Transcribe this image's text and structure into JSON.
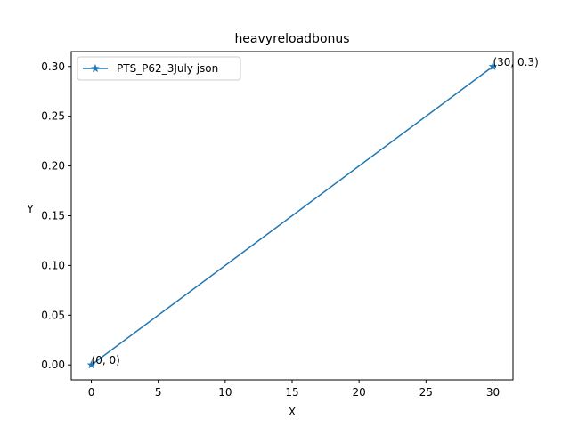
{
  "chart_data": {
    "type": "line",
    "title": "heavyreloadbonus",
    "xlabel": "X",
    "ylabel": "Y",
    "xlim": [
      -1.5,
      31.5
    ],
    "ylim": [
      -0.015,
      0.315
    ],
    "xticks": [
      0,
      5,
      10,
      15,
      20,
      25,
      30
    ],
    "yticks": [
      0.0,
      0.05,
      0.1,
      0.15,
      0.2,
      0.25,
      0.3
    ],
    "xtick_labels": [
      "0",
      "5",
      "10",
      "15",
      "20",
      "25",
      "30"
    ],
    "ytick_labels": [
      "0.00",
      "0.05",
      "0.10",
      "0.15",
      "0.20",
      "0.25",
      "0.30"
    ],
    "grid": false,
    "legend_position": "top-left",
    "series": [
      {
        "name": "PTS_P62_3July json",
        "color": "#1f77b4",
        "marker": "star",
        "x": [
          0,
          30
        ],
        "y": [
          0,
          0.3
        ]
      }
    ],
    "annotations": [
      {
        "x": 0,
        "y": 0,
        "text": "(0, 0)"
      },
      {
        "x": 30,
        "y": 0.3,
        "text": "(30, 0.3)"
      }
    ]
  }
}
